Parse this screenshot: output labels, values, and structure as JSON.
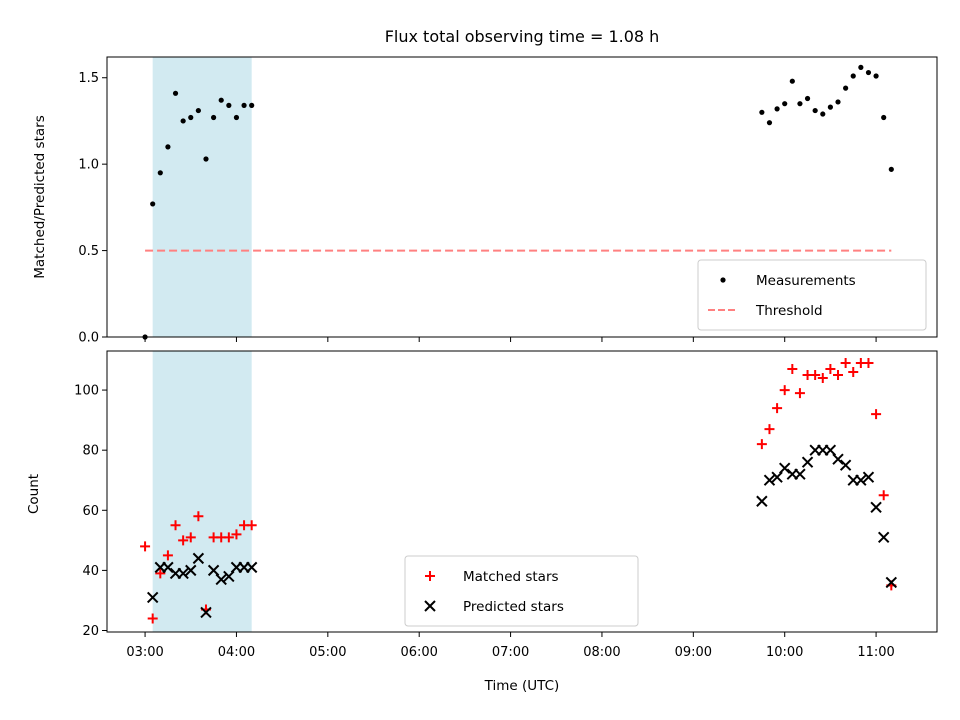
{
  "chart_data": [
    {
      "type": "scatter",
      "title": "Flux total observing time = 1.08 h",
      "xlabel": "",
      "ylabel": "Matched/Predicted stars",
      "ylim": [
        0,
        1.62
      ],
      "xlim": [
        "02:35",
        "11:40"
      ],
      "yticks": [
        0.0,
        0.5,
        1.0,
        1.5
      ],
      "yticklabels": [
        "0.0",
        "0.5",
        "1.0",
        "1.5"
      ],
      "shaded_span": [
        "03:05",
        "04:10"
      ],
      "shade_color": "#add8e6",
      "legend_position": "lower-right",
      "series": [
        {
          "name": "Measurements",
          "marker": "dot",
          "color": "#000000",
          "points": [
            [
              "03:00",
              0.0
            ],
            [
              "03:05",
              0.77
            ],
            [
              "03:10",
              0.95
            ],
            [
              "03:15",
              1.1
            ],
            [
              "03:20",
              1.41
            ],
            [
              "03:25",
              1.25
            ],
            [
              "03:30",
              1.27
            ],
            [
              "03:35",
              1.31
            ],
            [
              "03:40",
              1.03
            ],
            [
              "03:45",
              1.27
            ],
            [
              "03:50",
              1.37
            ],
            [
              "03:55",
              1.34
            ],
            [
              "04:00",
              1.27
            ],
            [
              "04:05",
              1.34
            ],
            [
              "04:10",
              1.34
            ],
            [
              "09:45",
              1.3
            ],
            [
              "09:50",
              1.24
            ],
            [
              "09:55",
              1.32
            ],
            [
              "10:00",
              1.35
            ],
            [
              "10:05",
              1.48
            ],
            [
              "10:10",
              1.35
            ],
            [
              "10:15",
              1.38
            ],
            [
              "10:20",
              1.31
            ],
            [
              "10:25",
              1.29
            ],
            [
              "10:30",
              1.33
            ],
            [
              "10:35",
              1.36
            ],
            [
              "10:40",
              1.44
            ],
            [
              "10:45",
              1.51
            ],
            [
              "10:50",
              1.56
            ],
            [
              "10:55",
              1.53
            ],
            [
              "11:00",
              1.51
            ],
            [
              "11:05",
              1.27
            ],
            [
              "11:10",
              0.97
            ]
          ]
        },
        {
          "name": "Threshold",
          "marker": "dashed-line",
          "color": "#ff8080",
          "points": [
            [
              "03:00",
              0.5
            ],
            [
              "11:10",
              0.5
            ]
          ]
        }
      ]
    },
    {
      "type": "scatter",
      "title": "",
      "xlabel": "Time (UTC)",
      "ylabel": "Count",
      "ylim": [
        19.5,
        113
      ],
      "xlim": [
        "02:35",
        "11:40"
      ],
      "yticks": [
        20,
        40,
        60,
        80,
        100
      ],
      "yticklabels": [
        "20",
        "40",
        "60",
        "80",
        "100"
      ],
      "xticks": [
        "03:00",
        "04:00",
        "05:00",
        "06:00",
        "07:00",
        "08:00",
        "09:00",
        "10:00",
        "11:00"
      ],
      "shaded_span": [
        "03:05",
        "04:10"
      ],
      "shade_color": "#add8e6",
      "legend_position": "lower-center",
      "series": [
        {
          "name": "Matched stars",
          "marker": "plus",
          "color": "#ff0000",
          "points": [
            [
              "03:00",
              48
            ],
            [
              "03:05",
              24
            ],
            [
              "03:10",
              39
            ],
            [
              "03:15",
              45
            ],
            [
              "03:20",
              55
            ],
            [
              "03:25",
              50
            ],
            [
              "03:30",
              51
            ],
            [
              "03:35",
              58
            ],
            [
              "03:40",
              27
            ],
            [
              "03:45",
              51
            ],
            [
              "03:50",
              51
            ],
            [
              "03:55",
              51
            ],
            [
              "04:00",
              52
            ],
            [
              "04:05",
              55
            ],
            [
              "04:10",
              55
            ],
            [
              "09:45",
              82
            ],
            [
              "09:50",
              87
            ],
            [
              "09:55",
              94
            ],
            [
              "10:00",
              100
            ],
            [
              "10:05",
              107
            ],
            [
              "10:10",
              99
            ],
            [
              "10:15",
              105
            ],
            [
              "10:20",
              105
            ],
            [
              "10:25",
              104
            ],
            [
              "10:30",
              107
            ],
            [
              "10:35",
              105
            ],
            [
              "10:40",
              109
            ],
            [
              "10:45",
              106
            ],
            [
              "10:50",
              109
            ],
            [
              "10:55",
              109
            ],
            [
              "11:00",
              92
            ],
            [
              "11:05",
              65
            ],
            [
              "11:10",
              35
            ]
          ]
        },
        {
          "name": "Predicted stars",
          "marker": "x",
          "color": "#000000",
          "points": [
            [
              "03:05",
              31
            ],
            [
              "03:10",
              41
            ],
            [
              "03:15",
              41
            ],
            [
              "03:20",
              39
            ],
            [
              "03:25",
              39
            ],
            [
              "03:30",
              40
            ],
            [
              "03:35",
              44
            ],
            [
              "03:40",
              26
            ],
            [
              "03:45",
              40
            ],
            [
              "03:50",
              37
            ],
            [
              "03:55",
              38
            ],
            [
              "04:00",
              41
            ],
            [
              "04:05",
              41
            ],
            [
              "04:10",
              41
            ],
            [
              "09:45",
              63
            ],
            [
              "09:50",
              70
            ],
            [
              "09:55",
              71
            ],
            [
              "10:00",
              74
            ],
            [
              "10:05",
              72
            ],
            [
              "10:10",
              72
            ],
            [
              "10:15",
              76
            ],
            [
              "10:20",
              80
            ],
            [
              "10:25",
              80
            ],
            [
              "10:30",
              80
            ],
            [
              "10:35",
              77
            ],
            [
              "10:40",
              75
            ],
            [
              "10:45",
              70
            ],
            [
              "10:50",
              70
            ],
            [
              "10:55",
              71
            ],
            [
              "11:00",
              61
            ],
            [
              "11:05",
              51
            ],
            [
              "11:10",
              36
            ]
          ]
        }
      ]
    }
  ]
}
